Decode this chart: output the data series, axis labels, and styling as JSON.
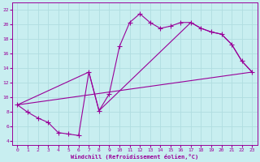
{
  "xlabel": "Windchill (Refroidissement éolien,°C)",
  "background_color": "#c8eef0",
  "grid_color": "#b0dde0",
  "line_color": "#990099",
  "yticks": [
    4,
    6,
    8,
    10,
    12,
    14,
    16,
    18,
    20,
    22
  ],
  "xticks": [
    0,
    1,
    2,
    3,
    4,
    5,
    6,
    7,
    8,
    9,
    10,
    11,
    12,
    13,
    14,
    15,
    16,
    17,
    18,
    19,
    20,
    21,
    22,
    23
  ],
  "ylim": [
    3.5,
    23.0
  ],
  "xlim": [
    -0.5,
    23.5
  ],
  "curve1_x": [
    0,
    1,
    2,
    3,
    4,
    5,
    6,
    7,
    8,
    9,
    10,
    11,
    12,
    13,
    14,
    15,
    16,
    17,
    18,
    19,
    20,
    21,
    22,
    23
  ],
  "curve1_y": [
    9.0,
    8.0,
    7.2,
    6.6,
    5.2,
    5.0,
    4.8,
    13.5,
    8.2,
    10.5,
    17.0,
    20.3,
    21.5,
    20.3,
    19.5,
    19.8,
    20.3,
    20.3,
    19.5,
    19.0,
    18.7,
    17.3,
    15.0,
    13.5
  ],
  "curve2_x": [
    0,
    7,
    8,
    17,
    18,
    19,
    20,
    21,
    22,
    23
  ],
  "curve2_y": [
    9.0,
    13.5,
    8.2,
    20.3,
    19.5,
    19.0,
    18.7,
    17.3,
    15.0,
    13.5
  ],
  "curve3_x": [
    0,
    23
  ],
  "curve3_y": [
    9.0,
    13.5
  ]
}
